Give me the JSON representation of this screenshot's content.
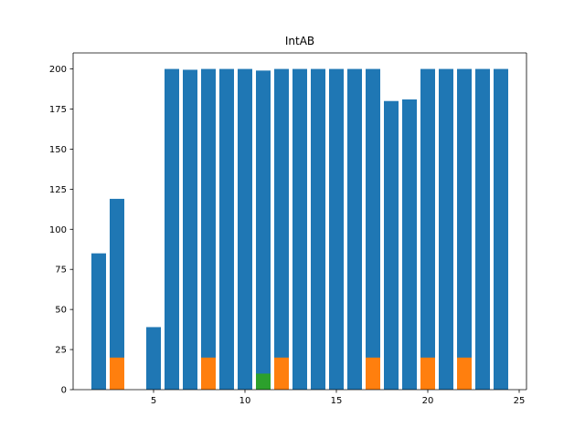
{
  "chart_data": {
    "type": "bar",
    "title": "IntAB",
    "xlabel": "",
    "ylabel": "",
    "xlim": [
      0.6,
      25.4
    ],
    "ylim": [
      0,
      210
    ],
    "xticks": [
      5,
      10,
      15,
      20,
      25
    ],
    "yticks": [
      0,
      25,
      50,
      75,
      100,
      125,
      150,
      175,
      200
    ],
    "grid": false,
    "legend": "none",
    "x": [
      2,
      3,
      5,
      6,
      7,
      8,
      9,
      10,
      11,
      12,
      13,
      14,
      15,
      16,
      17,
      18,
      19,
      20,
      21,
      22,
      23,
      24
    ],
    "series": [
      {
        "color": "#1f77b4",
        "x": [
          2,
          3,
          5,
          6,
          7,
          8,
          9,
          10,
          11,
          12,
          13,
          14,
          15,
          16,
          17,
          18,
          19,
          20,
          21,
          22,
          23,
          24
        ],
        "values": [
          85,
          119,
          39,
          200,
          199.5,
          200,
          200,
          200,
          199,
          200,
          200,
          200,
          200,
          200,
          200,
          180,
          181,
          200,
          200,
          200,
          200,
          200
        ]
      },
      {
        "color": "#ff7f0e",
        "x": [
          3,
          8,
          12,
          17,
          20,
          22
        ],
        "values": [
          20,
          20,
          20,
          20,
          20,
          20
        ]
      },
      {
        "color": "#2ca02c",
        "x": [
          11
        ],
        "values": [
          10
        ]
      }
    ]
  }
}
